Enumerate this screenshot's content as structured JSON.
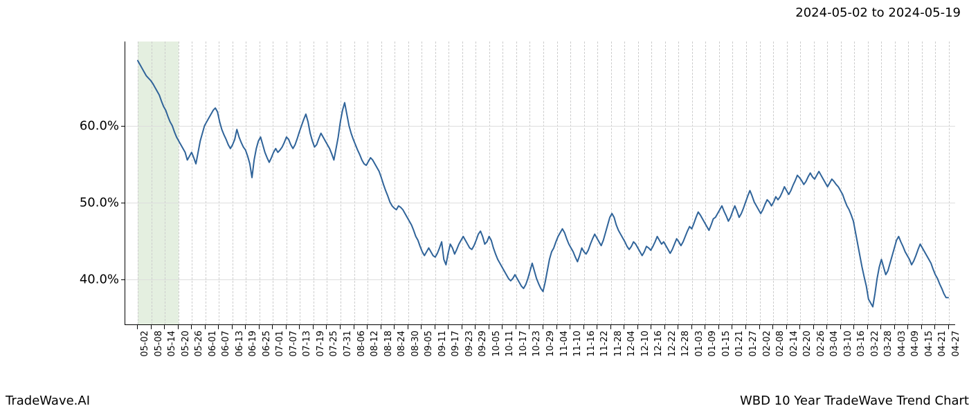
{
  "date_range": "2024-05-02 to 2024-05-19",
  "footer_left": "TradeWave.AI",
  "footer_right": "WBD 10 Year TradeWave Trend Chart",
  "chart": {
    "type": "line",
    "background_color": "#ffffff",
    "line_color": "#2f6399",
    "line_width": 2,
    "grid_color_v": "#cccccc",
    "grid_color_h": "#dddddd",
    "axis_color": "#000000",
    "highlight_band": {
      "start_index": 0,
      "end_index": 3,
      "color": "#d9e8d3",
      "opacity": 0.7
    },
    "y_axis": {
      "min": 34,
      "max": 71,
      "ticks": [
        40.0,
        50.0,
        60.0
      ],
      "tick_labels": [
        "40.0%",
        "50.0%",
        "60.0%"
      ],
      "fontsize": 18
    },
    "x_axis": {
      "tick_labels": [
        "05-02",
        "05-08",
        "05-14",
        "05-20",
        "05-26",
        "06-01",
        "06-07",
        "06-13",
        "06-19",
        "06-25",
        "07-01",
        "07-07",
        "07-13",
        "07-19",
        "07-25",
        "07-31",
        "08-06",
        "08-12",
        "08-18",
        "08-24",
        "08-30",
        "09-05",
        "09-11",
        "09-17",
        "09-23",
        "09-29",
        "10-05",
        "10-11",
        "10-17",
        "10-23",
        "10-29",
        "11-04",
        "11-10",
        "11-16",
        "11-22",
        "11-28",
        "12-04",
        "12-10",
        "12-16",
        "12-22",
        "12-28",
        "01-03",
        "01-09",
        "01-15",
        "01-21",
        "01-27",
        "02-02",
        "02-08",
        "02-14",
        "02-20",
        "02-26",
        "03-04",
        "03-10",
        "03-16",
        "03-22",
        "03-28",
        "04-03",
        "04-09",
        "04-15",
        "04-21",
        "04-27"
      ],
      "fontsize": 13
    },
    "series": [
      {
        "name": "WBD trend",
        "values": [
          68.5,
          68.0,
          67.5,
          67.0,
          66.5,
          66.2,
          65.9,
          65.5,
          65.0,
          64.5,
          64.0,
          63.2,
          62.5,
          62.0,
          61.2,
          60.5,
          60.0,
          59.2,
          58.5,
          58.0,
          57.5,
          57.0,
          56.5,
          55.5,
          56.0,
          56.5,
          55.8,
          55.0,
          56.5,
          58.0,
          59.0,
          60.0,
          60.5,
          61.0,
          61.5,
          62.0,
          62.3,
          61.8,
          60.5,
          59.5,
          58.8,
          58.2,
          57.5,
          57.0,
          57.5,
          58.2,
          59.5,
          58.5,
          57.8,
          57.2,
          56.8,
          56.0,
          55.0,
          53.2,
          55.5,
          57.0,
          58.0,
          58.5,
          57.5,
          56.5,
          55.8,
          55.2,
          55.8,
          56.5,
          57.0,
          56.5,
          56.8,
          57.2,
          57.8,
          58.5,
          58.2,
          57.5,
          57.0,
          57.5,
          58.3,
          59.2,
          60.0,
          60.8,
          61.5,
          60.5,
          59.0,
          58.0,
          57.2,
          57.5,
          58.3,
          59.0,
          58.5,
          58.0,
          57.5,
          57.0,
          56.3,
          55.5,
          57.0,
          58.5,
          60.5,
          62.0,
          63.0,
          61.5,
          60.0,
          59.0,
          58.2,
          57.5,
          56.8,
          56.2,
          55.5,
          55.0,
          54.8,
          55.3,
          55.8,
          55.5,
          55.0,
          54.5,
          54.0,
          53.2,
          52.3,
          51.5,
          50.8,
          50.0,
          49.5,
          49.2,
          49.0,
          49.5,
          49.3,
          49.0,
          48.5,
          48.0,
          47.5,
          47.0,
          46.3,
          45.5,
          45.0,
          44.2,
          43.5,
          43.0,
          43.5,
          44.0,
          43.5,
          43.0,
          42.8,
          43.3,
          44.0,
          44.8,
          42.5,
          41.8,
          43.3,
          44.5,
          44.0,
          43.2,
          43.8,
          44.5,
          45.0,
          45.5,
          45.0,
          44.5,
          44.0,
          43.8,
          44.3,
          45.0,
          45.8,
          46.2,
          45.5,
          44.5,
          44.8,
          45.5,
          45.0,
          44.0,
          43.2,
          42.5,
          42.0,
          41.5,
          41.0,
          40.5,
          40.0,
          39.7,
          40.0,
          40.5,
          40.0,
          39.5,
          39.0,
          38.7,
          39.2,
          40.0,
          41.0,
          42.0,
          41.0,
          40.0,
          39.3,
          38.7,
          38.3,
          39.5,
          41.0,
          42.5,
          43.5,
          44.0,
          44.8,
          45.5,
          46.0,
          46.5,
          46.0,
          45.2,
          44.5,
          44.0,
          43.5,
          42.8,
          42.2,
          43.0,
          44.0,
          43.5,
          43.2,
          43.7,
          44.5,
          45.2,
          45.8,
          45.3,
          44.8,
          44.3,
          45.0,
          46.0,
          47.0,
          48.0,
          48.5,
          48.0,
          47.0,
          46.3,
          45.8,
          45.3,
          44.8,
          44.2,
          43.8,
          44.2,
          44.8,
          44.5,
          44.0,
          43.5,
          43.0,
          43.5,
          44.2,
          44.0,
          43.7,
          44.2,
          44.8,
          45.5,
          45.0,
          44.5,
          44.8,
          44.3,
          43.8,
          43.3,
          43.8,
          44.5,
          45.2,
          44.8,
          44.3,
          44.8,
          45.5,
          46.2,
          46.8,
          46.5,
          47.2,
          48.0,
          48.7,
          48.3,
          47.8,
          47.3,
          46.8,
          46.3,
          47.0,
          47.8,
          48.0,
          48.5,
          49.0,
          49.5,
          48.8,
          48.2,
          47.5,
          48.0,
          48.8,
          49.5,
          48.8,
          48.0,
          48.5,
          49.2,
          50.0,
          50.8,
          51.5,
          50.8,
          50.0,
          49.5,
          49.0,
          48.5,
          49.0,
          49.7,
          50.3,
          50.0,
          49.5,
          50.0,
          50.7,
          50.3,
          50.7,
          51.3,
          52.0,
          51.5,
          51.0,
          51.5,
          52.2,
          52.8,
          53.5,
          53.2,
          52.8,
          52.3,
          52.7,
          53.3,
          53.8,
          53.3,
          53.0,
          53.5,
          54.0,
          53.5,
          53.0,
          52.5,
          52.0,
          52.5,
          53.0,
          52.7,
          52.3,
          52.0,
          51.5,
          51.0,
          50.2,
          49.5,
          49.0,
          48.3,
          47.5,
          46.0,
          44.5,
          43.0,
          41.5,
          40.2,
          39.0,
          37.3,
          36.8,
          36.3,
          38.0,
          40.0,
          41.5,
          42.5,
          41.5,
          40.5,
          41.0,
          42.0,
          43.0,
          44.0,
          45.0,
          45.5,
          44.8,
          44.2,
          43.5,
          43.0,
          42.5,
          41.8,
          42.3,
          43.0,
          43.8,
          44.5,
          44.0,
          43.5,
          43.0,
          42.5,
          42.0,
          41.2,
          40.5,
          40.0,
          39.3,
          38.7,
          38.0,
          37.5,
          37.5
        ]
      }
    ]
  }
}
